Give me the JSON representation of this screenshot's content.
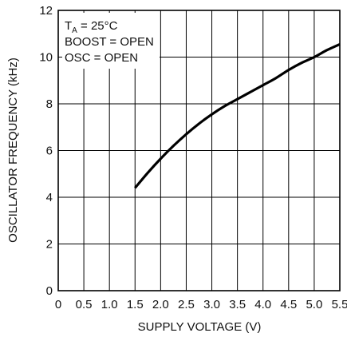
{
  "chart_data": {
    "type": "line",
    "xlabel": "SUPPLY VOLTAGE (V)",
    "ylabel": "OSCILLATOR FREQUENCY (kHz)",
    "xlim": [
      0,
      5.5
    ],
    "ylim": [
      0,
      12
    ],
    "x_ticks": [
      0,
      0.5,
      1.0,
      1.5,
      2.0,
      2.5,
      3.0,
      3.5,
      4.0,
      4.5,
      5.0,
      5.5
    ],
    "x_tick_labels": [
      "0",
      "0.5",
      "1.0",
      "1.5",
      "2.0",
      "2.5",
      "3.0",
      "3.5",
      "4.0",
      "4.5",
      "5.0",
      "5.5"
    ],
    "y_ticks": [
      0,
      2,
      4,
      6,
      8,
      10,
      12
    ],
    "y_tick_labels": [
      "0",
      "2",
      "4",
      "6",
      "8",
      "10",
      "12"
    ],
    "grid": true,
    "annotations": {
      "ta_main": "T",
      "ta_sub": "A",
      "ta_value": " = 25°C",
      "boost": "BOOST = OPEN",
      "osc": "OSC = OPEN"
    },
    "series": [
      {
        "x": [
          1.5,
          1.75,
          2.0,
          2.25,
          2.5,
          2.75,
          3.0,
          3.25,
          3.5,
          3.75,
          4.0,
          4.25,
          4.5,
          4.75,
          5.0,
          5.25,
          5.5
        ],
        "y": [
          4.4,
          5.05,
          5.65,
          6.2,
          6.7,
          7.15,
          7.55,
          7.9,
          8.2,
          8.5,
          8.8,
          9.1,
          9.45,
          9.75,
          10.0,
          10.3,
          10.55
        ],
        "color": "#000000"
      }
    ]
  }
}
